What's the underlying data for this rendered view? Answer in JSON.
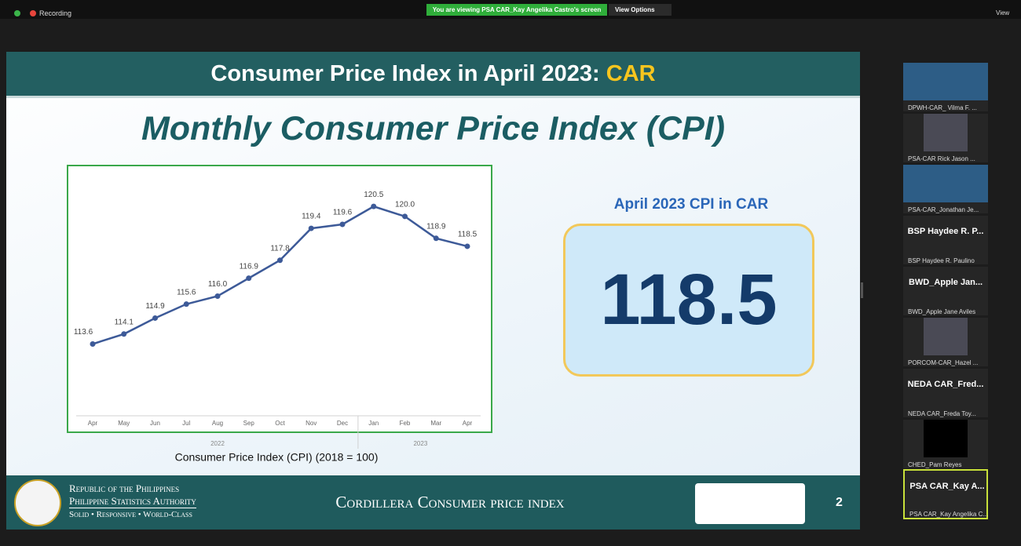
{
  "top_bar": {
    "recording": "Recording",
    "viewing_banner": "You are viewing PSA CAR_Kay Angelika Castro's screen",
    "view_options": "View Options",
    "view": "View"
  },
  "slide": {
    "title": "Consumer Price Index in April 2023:",
    "title_highlight": "CAR",
    "subtitle": "Monthly Consumer Price Index (CPI)",
    "highlight_heading": "April 2023 CPI in CAR",
    "highlight_value": "118.5",
    "footer": {
      "org_line1": "Republic of the Philippines",
      "org_line2": "Philippine Statistics Authority",
      "org_line3": "Solid • Responsive • World-Class",
      "center_title": "Cordillera Consumer price index",
      "page_number": "2"
    }
  },
  "chart_data": {
    "type": "line",
    "caption": "Consumer Price Index (CPI) (2018 = 100)",
    "categories": [
      "Apr",
      "May",
      "Jun",
      "Jul",
      "Aug",
      "Sep",
      "Oct",
      "Nov",
      "Dec",
      "Jan",
      "Feb",
      "Mar",
      "Apr"
    ],
    "x_groups": [
      {
        "label": "2022",
        "from": 0,
        "to": 8
      },
      {
        "label": "2023",
        "from": 9,
        "to": 12
      }
    ],
    "values": [
      113.6,
      114.1,
      114.9,
      115.6,
      116.0,
      116.9,
      117.8,
      119.4,
      119.6,
      120.5,
      120.0,
      118.9,
      118.5
    ],
    "value_labels": [
      "113.6",
      "114.1",
      "114.9",
      "115.6",
      "116.0",
      "116.9",
      "117.8",
      "119.4",
      "119.6",
      "120.5",
      "120.0",
      "118.9",
      "118.5"
    ],
    "color": "#3d5a98",
    "ylim": [
      110,
      122
    ]
  },
  "participants": [
    {
      "label": "DPWH-CAR_ Vilma F. ..."
    },
    {
      "label": "PSA-CAR Rick Jason ..."
    },
    {
      "label": "PSA-CAR_Jonathan Je..."
    },
    {
      "tile_text": "BSP Haydee R. P...",
      "label": "BSP Haydee R. Paulino"
    },
    {
      "tile_text": "BWD_Apple Jan...",
      "label": "BWD_Apple Jane Aviles"
    },
    {
      "label": "PORCOM-CAR_Hazel ..."
    },
    {
      "tile_text": "NEDA CAR_Fred...",
      "label": "NEDA CAR_Freda Toy..."
    },
    {
      "label": "CHED_Pam Reyes"
    },
    {
      "tile_text": "PSA CAR_Kay A...",
      "label": "PSA CAR_Kay Angelika C..."
    }
  ]
}
